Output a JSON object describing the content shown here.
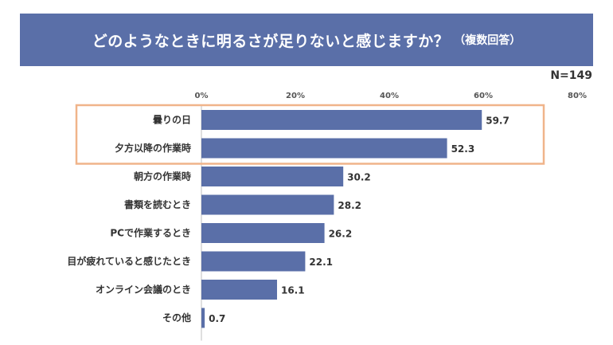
{
  "title": {
    "main": "どのようなときに明るさが足りないと感じますか？",
    "sub": "（複数回答）"
  },
  "sample_size": "N=149",
  "colors": {
    "bar": "#5a6fa8",
    "title_bg": "#5a6fa8",
    "highlight": "#f0b48a"
  },
  "chart_data": {
    "type": "bar",
    "orientation": "horizontal",
    "categories": [
      "曇りの日",
      "夕方以降の作業時",
      "朝方の作業時",
      "書類を読むとき",
      "PCで作業するとき",
      "目が疲れていると感じたとき",
      "オンライン会議のとき",
      "その他"
    ],
    "values": [
      59.7,
      52.3,
      30.2,
      28.2,
      26.2,
      22.1,
      16.1,
      0.7
    ],
    "value_labels": [
      "59.7",
      "52.3",
      "30.2",
      "28.2",
      "26.2",
      "22.1",
      "16.1",
      "0.7"
    ],
    "xlim": [
      0,
      80
    ],
    "ticks": [
      0,
      20,
      40,
      60,
      80
    ],
    "tick_labels": [
      "0%",
      "20%",
      "40%",
      "60%",
      "80%"
    ],
    "tick_position": "top",
    "grid": false,
    "highlighted_categories": [
      "曇りの日",
      "夕方以降の作業時"
    ]
  }
}
